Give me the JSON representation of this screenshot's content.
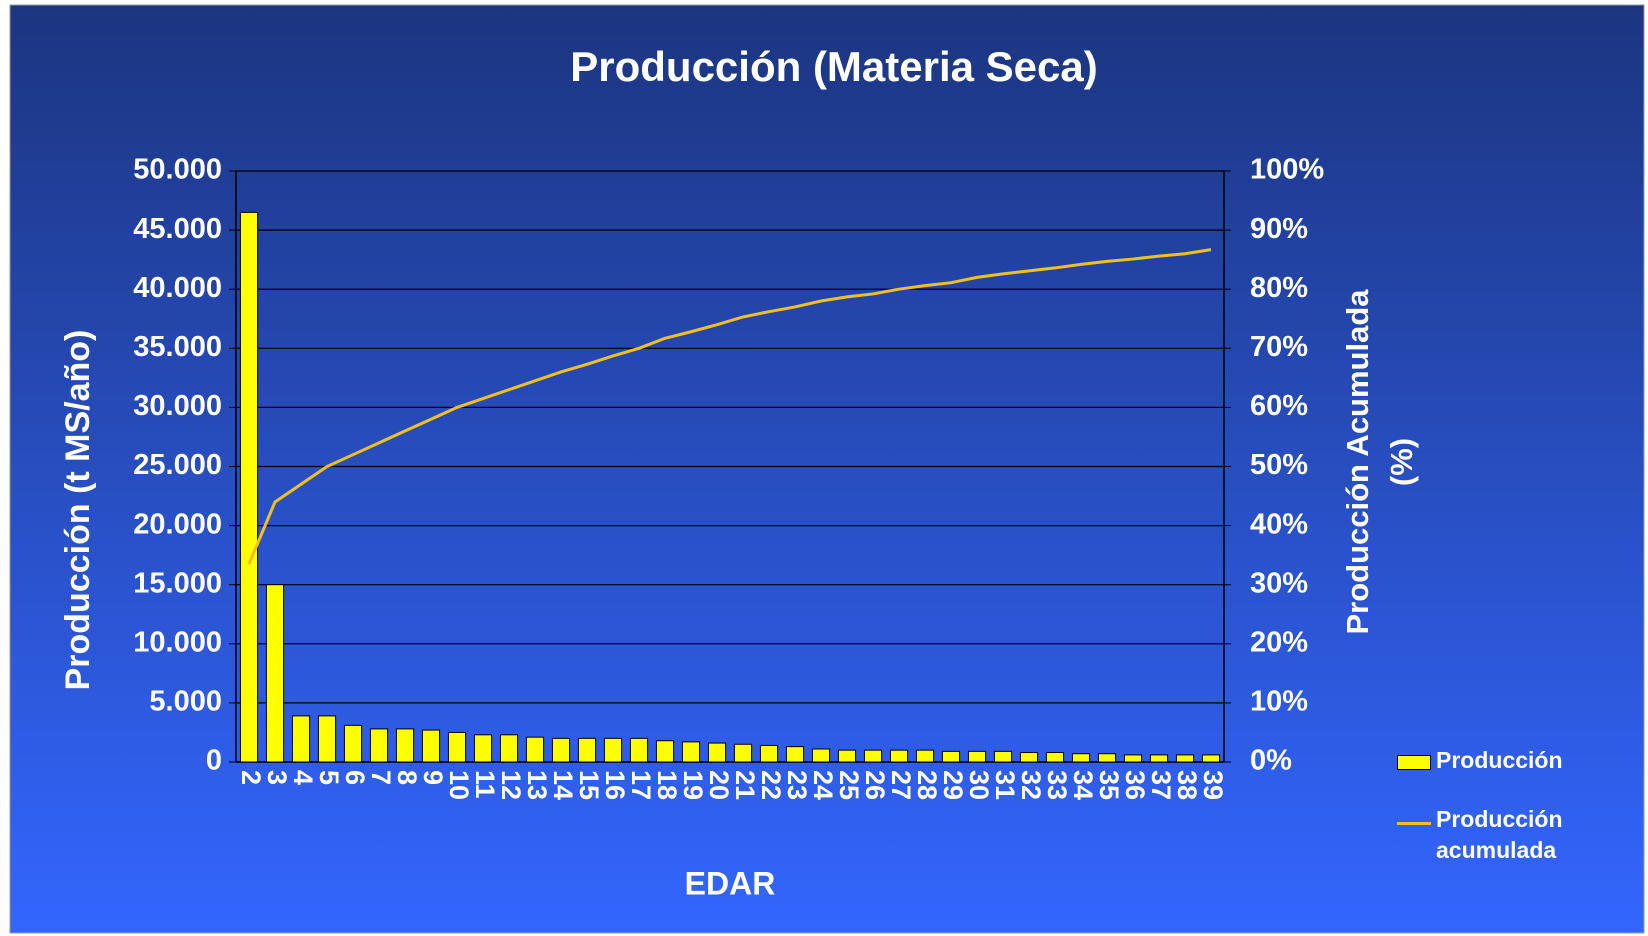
{
  "chart_data": {
    "type": "bar",
    "title": "Producción (Materia Seca)",
    "x_label": "EDAR",
    "y_label": "Producción (t MS/año)",
    "y2_label": "Producción Acumulada (%)",
    "categories": [
      "2",
      "3",
      "4",
      "5",
      "6",
      "7",
      "8",
      "9",
      "10",
      "11",
      "12",
      "13",
      "14",
      "15",
      "16",
      "17",
      "18",
      "19",
      "20",
      "21",
      "22",
      "23",
      "24",
      "25",
      "26",
      "27",
      "28",
      "29",
      "30",
      "31",
      "32",
      "33",
      "34",
      "35",
      "36",
      "37",
      "38",
      "39"
    ],
    "series": [
      {
        "name": "Producción",
        "type": "bar",
        "axis": "y",
        "color": "#ffff00",
        "values": [
          46500,
          15000,
          3900,
          3900,
          3100,
          2800,
          2800,
          2700,
          2500,
          2300,
          2300,
          2100,
          2000,
          2000,
          2000,
          2000,
          1800,
          1700,
          1600,
          1500,
          1400,
          1300,
          1100,
          1000,
          1000,
          1000,
          1000,
          900,
          900,
          900,
          800,
          800,
          700,
          700,
          600,
          600,
          600,
          600
        ]
      },
      {
        "name": "Producción acumulada",
        "type": "line",
        "axis": "y2",
        "color": "#f0c020",
        "values": [
          33.5,
          44,
          47,
          50,
          52,
          54,
          56,
          58,
          60,
          61.5,
          63,
          64.5,
          66,
          67.3,
          68.7,
          70,
          71.7,
          72.8,
          74,
          75.3,
          76.2,
          77,
          78,
          78.7,
          79.2,
          80,
          80.6,
          81.1,
          82,
          82.6,
          83.1,
          83.6,
          84.2,
          84.7,
          85.1,
          85.6,
          86,
          86.7
        ]
      }
    ],
    "ylim": [
      0,
      50000
    ],
    "yticks": [
      0,
      {
        "value": 5000,
        "label": "5.000"
      },
      {
        "value": 10000,
        "label": "10.000"
      },
      {
        "value": 15000,
        "label": "15.000"
      },
      {
        "value": 20000,
        "label": "20.000"
      },
      {
        "value": 25000,
        "label": "25.000"
      },
      {
        "value": 30000,
        "label": "30.000"
      },
      {
        "value": 35000,
        "label": "35.000"
      },
      {
        "value": 40000,
        "label": "40.000"
      },
      {
        "value": 45000,
        "label": "45.000"
      },
      {
        "value": 50000,
        "label": "50.000"
      }
    ],
    "y2lim": [
      0,
      100
    ],
    "y2ticks": [
      {
        "value": 0,
        "label": "0%"
      },
      {
        "value": 10,
        "label": "10%"
      },
      {
        "value": 20,
        "label": "20%"
      },
      {
        "value": 30,
        "label": "30%"
      },
      {
        "value": 40,
        "label": "40%"
      },
      {
        "value": 50,
        "label": "50%"
      },
      {
        "value": 60,
        "label": "60%"
      },
      {
        "value": 70,
        "label": "70%"
      },
      {
        "value": 80,
        "label": "80%"
      },
      {
        "value": 90,
        "label": "90%"
      },
      {
        "value": 100,
        "label": "100%"
      }
    ],
    "grid": true,
    "legend": "right"
  }
}
